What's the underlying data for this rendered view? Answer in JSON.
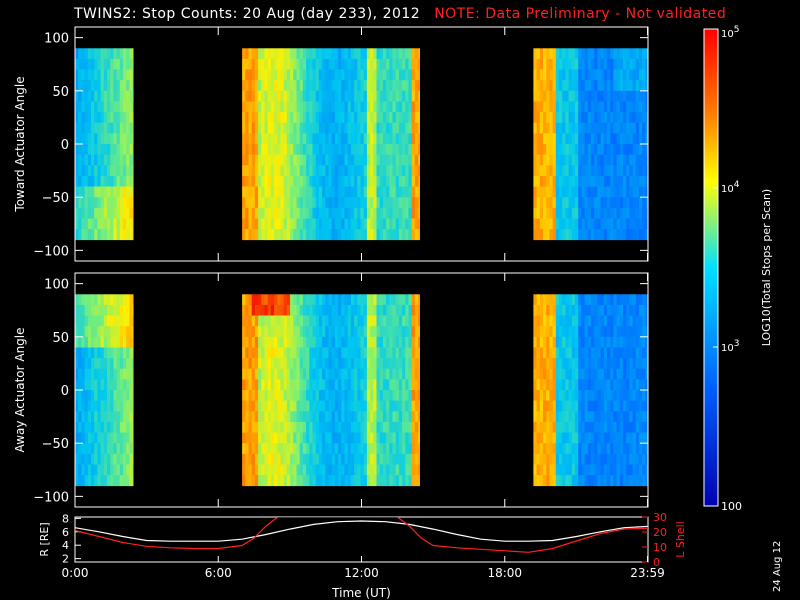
{
  "header": {
    "title": "TWINS2: Stop Counts: 20 Aug (day 233), 2012",
    "note": "NOTE: Data Preliminary - Not validated",
    "note_color": "#ff2020"
  },
  "date_stamp": "24 Aug 12",
  "chart_data": [
    {
      "type": "heatmap",
      "ylabel": "Toward Actuator Angle",
      "ylim": [
        -110,
        110
      ],
      "yticks": [
        "100",
        "50",
        "0",
        "−50",
        "−100"
      ],
      "ytick_values": [
        100,
        50,
        0,
        -50,
        -100
      ],
      "data_yrange": [
        -90,
        90
      ],
      "xlim": [
        0,
        24
      ],
      "data_intervals_hours": [
        [
          0,
          2.45
        ],
        [
          7.0,
          14.45
        ],
        [
          19.2,
          24.0
        ]
      ],
      "colorscale": "rainbow (log counts 100 to 1e5)"
    },
    {
      "type": "heatmap",
      "ylabel": "Away Actuator Angle",
      "ylim": [
        -110,
        110
      ],
      "yticks": [
        "100",
        "50",
        "0",
        "−50",
        "−100"
      ],
      "ytick_values": [
        100,
        50,
        0,
        -50,
        -100
      ],
      "data_yrange": [
        -90,
        90
      ],
      "xlim": [
        0,
        24
      ],
      "data_intervals_hours": [
        [
          0,
          2.45
        ],
        [
          7.0,
          14.45
        ],
        [
          19.2,
          24.0
        ]
      ],
      "colorscale": "rainbow (log counts 100 to 1e5)"
    },
    {
      "type": "line",
      "xlabel": "Time (UT)",
      "xticks": [
        "0:00",
        "6:00",
        "12:00",
        "18:00",
        "23:59"
      ],
      "xtick_hours": [
        0,
        6,
        12,
        18,
        23.98
      ],
      "left_axis": {
        "label": "R [RE]",
        "ylim": [
          1.5,
          8.2
        ],
        "ticks": [
          "8",
          "6",
          "4",
          "2"
        ],
        "tick_values": [
          8,
          6,
          4,
          2
        ],
        "color": "#ffffff"
      },
      "right_axis": {
        "label": "L Shell",
        "ylim": [
          0,
          30
        ],
        "ticks": [
          "30",
          "20",
          "10",
          "0"
        ],
        "tick_values": [
          30,
          20,
          10,
          0
        ],
        "color": "#ff2020"
      },
      "series": [
        {
          "axis": "left",
          "color": "#ffffff",
          "x": [
            0,
            1,
            2,
            3,
            4,
            5,
            6,
            7,
            8,
            9,
            10,
            11,
            12,
            13,
            14,
            15,
            16,
            17,
            18,
            19,
            20,
            21,
            22,
            23,
            24
          ],
          "y": [
            6.6,
            6.0,
            5.3,
            4.7,
            4.6,
            4.6,
            4.6,
            4.9,
            5.6,
            6.4,
            7.1,
            7.5,
            7.6,
            7.5,
            7.1,
            6.4,
            5.6,
            4.9,
            4.6,
            4.6,
            4.7,
            5.3,
            6.0,
            6.6,
            6.8
          ]
        },
        {
          "axis": "right",
          "color": "#ff2020",
          "x": [
            0,
            1,
            2,
            3,
            4,
            5,
            6,
            7,
            7.5,
            8,
            8.5,
            13.5,
            14,
            14.5,
            15,
            16,
            17,
            18,
            19,
            20,
            21,
            22,
            23,
            24
          ],
          "y": [
            21,
            17,
            13,
            10.5,
            9.5,
            9,
            9,
            11,
            16,
            24,
            30,
            30,
            24,
            16,
            11,
            9.5,
            8.5,
            7.5,
            6.5,
            9,
            14,
            19,
            22,
            22.5
          ]
        }
      ]
    },
    {
      "type": "colorbar",
      "label": "LOG10(Total Stops per Scan)",
      "ticks": [
        "10^5",
        "10^4",
        "10^3",
        "100"
      ],
      "tick_values": [
        100000,
        10000,
        1000,
        100
      ],
      "colors": [
        "#ff0000",
        "#ff7f00",
        "#ffff00",
        "#00d0ff",
        "#0060ff",
        "#0000c0"
      ]
    }
  ]
}
